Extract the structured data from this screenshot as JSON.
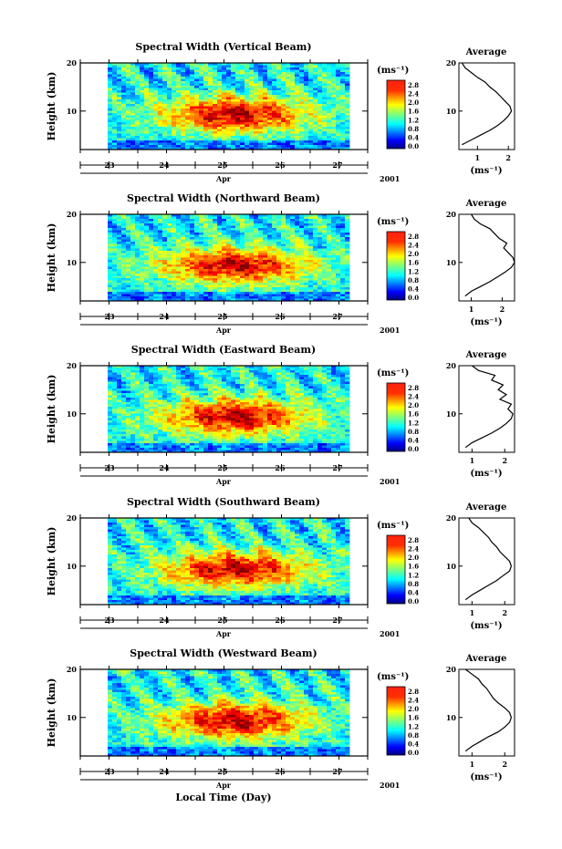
{
  "figure": {
    "xlabel": "Local Time (Day)"
  },
  "chart_data": [
    {
      "type": "heatmap",
      "title": "Spectral Width (Vertical Beam)",
      "ylabel": "Height (km)",
      "xticks": [
        "23",
        "24",
        "25",
        "26",
        "27"
      ],
      "month": "Apr",
      "year": "2001",
      "yticks": [
        "20",
        "10"
      ],
      "ylim": [
        2,
        20
      ],
      "colorbar": {
        "unit": "(ms⁻¹)",
        "ticks": [
          "2.8",
          "2.4",
          "2.0",
          "1.6",
          "1.2",
          "0.8",
          "0.4",
          "0.0"
        ],
        "range": [
          0,
          2.8
        ]
      },
      "average": {
        "title": "Average",
        "xlabel": "(ms⁻¹)",
        "xticks": [
          "1",
          "2"
        ],
        "xlim": [
          0.4,
          2.2
        ],
        "heights": [
          3,
          4,
          5,
          6,
          7,
          8,
          9,
          10,
          11,
          12,
          13,
          14,
          15,
          16,
          17,
          18,
          19,
          20
        ],
        "values": [
          0.5,
          0.8,
          1.1,
          1.4,
          1.65,
          1.85,
          2.0,
          2.1,
          2.05,
          1.9,
          1.75,
          1.6,
          1.4,
          1.25,
          1.0,
          0.8,
          0.6,
          0.5
        ]
      }
    },
    {
      "type": "heatmap",
      "title": "Spectral Width (Northward Beam)",
      "ylabel": "Height (km)",
      "xticks": [
        "23",
        "24",
        "25",
        "26",
        "27"
      ],
      "month": "Apr",
      "year": "2001",
      "yticks": [
        "20",
        "10"
      ],
      "ylim": [
        2,
        20
      ],
      "colorbar": {
        "unit": "(ms⁻¹)",
        "ticks": [
          "2.8",
          "2.4",
          "2.0",
          "1.6",
          "1.2",
          "0.8",
          "0.4",
          "0.0"
        ],
        "range": [
          0,
          2.8
        ]
      },
      "average": {
        "title": "Average",
        "xlabel": "(ms⁻¹)",
        "xticks": [
          "1",
          "2"
        ],
        "xlim": [
          0.6,
          2.4
        ],
        "heights": [
          3,
          4,
          5,
          6,
          7,
          8,
          9,
          10,
          11,
          12,
          13,
          14,
          15,
          16,
          17,
          18,
          19,
          20
        ],
        "values": [
          0.8,
          1.0,
          1.3,
          1.6,
          1.85,
          2.1,
          2.3,
          2.4,
          2.35,
          2.2,
          2.05,
          2.15,
          1.9,
          1.75,
          1.6,
          1.3,
          1.1,
          1.0
        ]
      }
    },
    {
      "type": "heatmap",
      "title": "Spectral Width (Eastward Beam)",
      "ylabel": "Height (km)",
      "xticks": [
        "23",
        "24",
        "25",
        "26",
        "27"
      ],
      "month": "Apr",
      "year": "2001",
      "yticks": [
        "20",
        "10"
      ],
      "ylim": [
        2,
        20
      ],
      "colorbar": {
        "unit": "(ms⁻¹)",
        "ticks": [
          "2.8",
          "2.4",
          "2.0",
          "1.6",
          "1.2",
          "0.8",
          "0.4",
          "0.0"
        ],
        "range": [
          0,
          2.8
        ]
      },
      "average": {
        "title": "Average",
        "xlabel": "(ms⁻¹)",
        "xticks": [
          "1",
          "2"
        ],
        "xlim": [
          0.6,
          2.3
        ],
        "heights": [
          3,
          4,
          5,
          6,
          7,
          8,
          9,
          10,
          11,
          12,
          13,
          14,
          15,
          16,
          17,
          18,
          19,
          20
        ],
        "values": [
          0.8,
          1.0,
          1.3,
          1.6,
          1.85,
          2.05,
          2.2,
          2.25,
          2.1,
          2.2,
          1.85,
          2.05,
          1.8,
          1.95,
          1.6,
          1.7,
          1.2,
          1.0
        ]
      }
    },
    {
      "type": "heatmap",
      "title": "Spectral Width (Southward Beam)",
      "ylabel": "Height (km)",
      "xticks": [
        "23",
        "24",
        "25",
        "26",
        "27"
      ],
      "month": "Apr",
      "year": "2001",
      "yticks": [
        "20",
        "10"
      ],
      "ylim": [
        2,
        20
      ],
      "colorbar": {
        "unit": "(ms⁻¹)",
        "ticks": [
          "2.8",
          "2.4",
          "2.0",
          "1.6",
          "1.2",
          "0.8",
          "0.4",
          "0.0"
        ],
        "range": [
          0,
          2.8
        ]
      },
      "average": {
        "title": "Average",
        "xlabel": "(ms⁻¹)",
        "xticks": [
          "1",
          "2"
        ],
        "xlim": [
          0.6,
          2.3
        ],
        "heights": [
          3,
          4,
          5,
          6,
          7,
          8,
          9,
          10,
          11,
          12,
          13,
          14,
          15,
          16,
          17,
          18,
          19,
          20
        ],
        "values": [
          0.8,
          1.0,
          1.25,
          1.5,
          1.75,
          1.95,
          2.15,
          2.2,
          2.15,
          2.0,
          1.85,
          1.75,
          1.6,
          1.5,
          1.35,
          1.2,
          1.0,
          0.9
        ]
      }
    },
    {
      "type": "heatmap",
      "title": "Spectral Width (Westward Beam)",
      "ylabel": "Height (km)",
      "xticks": [
        "23",
        "24",
        "25",
        "26",
        "27"
      ],
      "month": "Apr",
      "year": "2001",
      "yticks": [
        "20",
        "10"
      ],
      "ylim": [
        2,
        20
      ],
      "colorbar": {
        "unit": "(ms⁻¹)",
        "ticks": [
          "2.8",
          "2.4",
          "2.0",
          "1.6",
          "1.2",
          "0.8",
          "0.4",
          "0.0"
        ],
        "range": [
          0,
          2.8
        ]
      },
      "average": {
        "title": "Average",
        "xlabel": "(ms⁻¹)",
        "xticks": [
          "1",
          "2"
        ],
        "xlim": [
          0.6,
          2.3
        ],
        "heights": [
          3,
          4,
          5,
          6,
          7,
          8,
          9,
          10,
          11,
          12,
          13,
          14,
          15,
          16,
          17,
          18,
          19,
          20
        ],
        "values": [
          0.8,
          1.0,
          1.25,
          1.5,
          1.8,
          2.0,
          2.15,
          2.2,
          2.15,
          2.0,
          1.8,
          1.65,
          1.55,
          1.45,
          1.3,
          1.2,
          1.0,
          0.8
        ]
      }
    }
  ]
}
